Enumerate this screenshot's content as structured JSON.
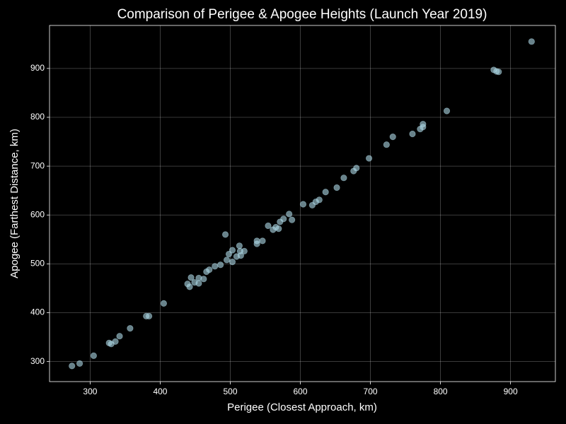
{
  "chart_data": {
    "type": "scatter",
    "title": "Comparison of Perigee & Apogee Heights (Launch Year 2019)",
    "x_label": "Perigee (Closest Approach, km)",
    "y_label": "Apogee (Farthest Distance, km)",
    "x": [
      274,
      285,
      305,
      327,
      330,
      336,
      342,
      357,
      380,
      384,
      405,
      439,
      442,
      444,
      449,
      455,
      455,
      462,
      466,
      470,
      478,
      486,
      493,
      495,
      498,
      503,
      503,
      509,
      513,
      514,
      515,
      520,
      538,
      538,
      546,
      554,
      561,
      565,
      569,
      571,
      576,
      584,
      588,
      604,
      617,
      622,
      627,
      636,
      652,
      662,
      676,
      680,
      698,
      723,
      732,
      760,
      771,
      775,
      775,
      809,
      876,
      880,
      883,
      930
    ],
    "values": [
      291,
      296,
      312,
      338,
      336,
      341,
      352,
      368,
      393,
      393,
      419,
      459,
      453,
      472,
      462,
      471,
      460,
      469,
      484,
      488,
      495,
      498,
      560,
      508,
      520,
      528,
      504,
      515,
      537,
      526,
      517,
      526,
      547,
      541,
      547,
      578,
      570,
      575,
      572,
      586,
      592,
      602,
      590,
      622,
      620,
      627,
      631,
      647,
      656,
      676,
      690,
      696,
      716,
      744,
      760,
      766,
      776,
      780,
      786,
      813,
      897,
      894,
      893,
      955
    ],
    "color": "#add8e6",
    "xlim": [
      242,
      964
    ],
    "ylim": [
      259,
      988
    ],
    "xticks": [
      300,
      400,
      500,
      600,
      700,
      800,
      900
    ],
    "yticks": [
      300,
      400,
      500,
      600,
      700,
      800,
      900
    ],
    "grid": true
  }
}
